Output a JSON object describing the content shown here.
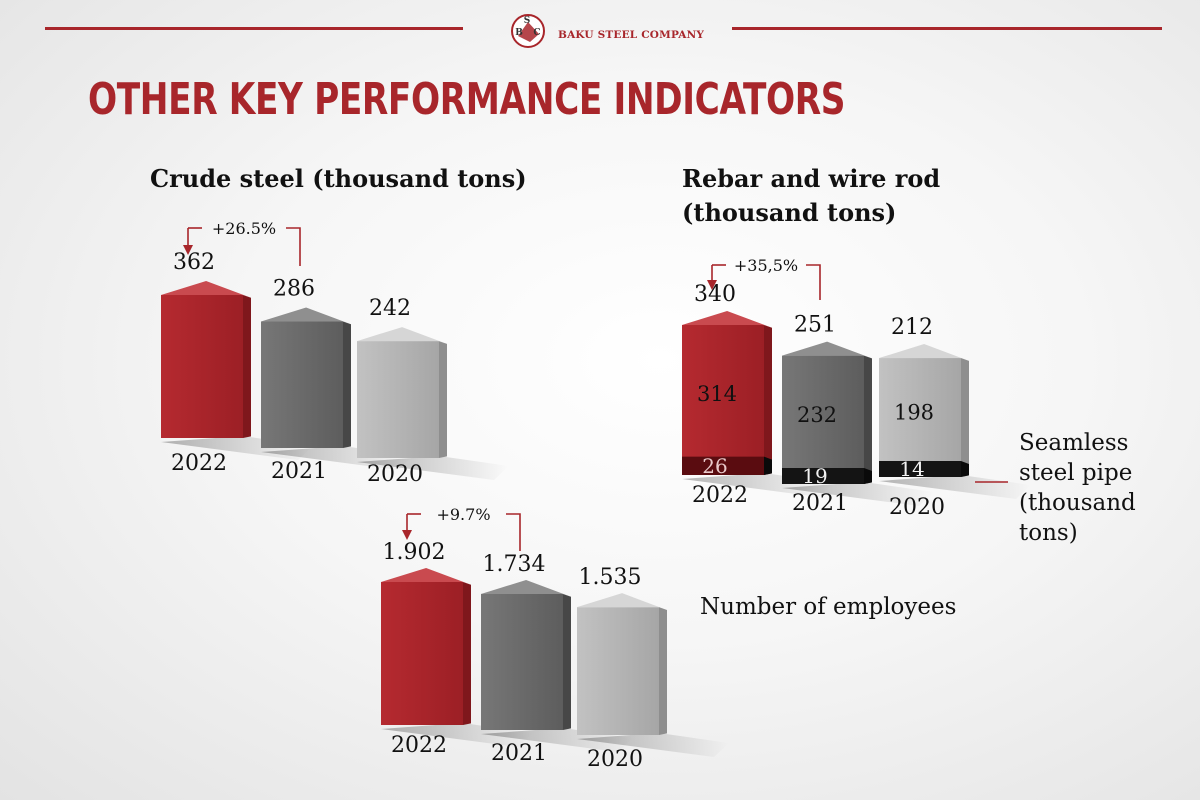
{
  "header": {
    "company": "BAKU STEEL COMPANY",
    "logo_letters": [
      "S",
      "B",
      "C"
    ]
  },
  "main_title": "OTHER KEY PERFORMANCE INDICATORS",
  "colors": {
    "accent": "#a8262b",
    "dark_gray": "#6b6b6b",
    "light_gray": "#b3b3b3",
    "black": "#111111"
  },
  "chart_data": [
    {
      "id": "crude",
      "type": "bar",
      "title_lines": [
        "Crude steel (thousand tons)"
      ],
      "categories": [
        "2022",
        "2021",
        "2020"
      ],
      "values": [
        362,
        286,
        242
      ],
      "value_labels": [
        "362",
        "286",
        "242"
      ],
      "change": "+26.5%"
    },
    {
      "id": "rebar",
      "type": "bar",
      "title_lines": [
        "Rebar and wire rod",
        "(thousand tons)"
      ],
      "categories": [
        "2022",
        "2021",
        "2020"
      ],
      "totals": [
        340,
        251,
        212
      ],
      "total_labels": [
        "340",
        "251",
        "212"
      ],
      "series": [
        {
          "name": "Rebar and wire rod (thousand tons)",
          "values": [
            314,
            232,
            198
          ],
          "labels": [
            "314",
            "232",
            "198"
          ]
        },
        {
          "name": "Seamless steel pipe (thousand tons)",
          "values": [
            26,
            19,
            14
          ],
          "labels": [
            "26",
            "19",
            "14"
          ]
        }
      ],
      "change": "+35,5%",
      "pipe_label_lines": [
        "Seamless",
        "steel pipe",
        "(thousand",
        "tons)"
      ]
    },
    {
      "id": "employees",
      "type": "bar",
      "title": "Number of employees",
      "categories": [
        "2022",
        "2021",
        "2020"
      ],
      "values": [
        1902,
        1734,
        1535
      ],
      "value_labels": [
        "1.902",
        "1.734",
        "1.535"
      ],
      "change": "+9.7%"
    }
  ]
}
